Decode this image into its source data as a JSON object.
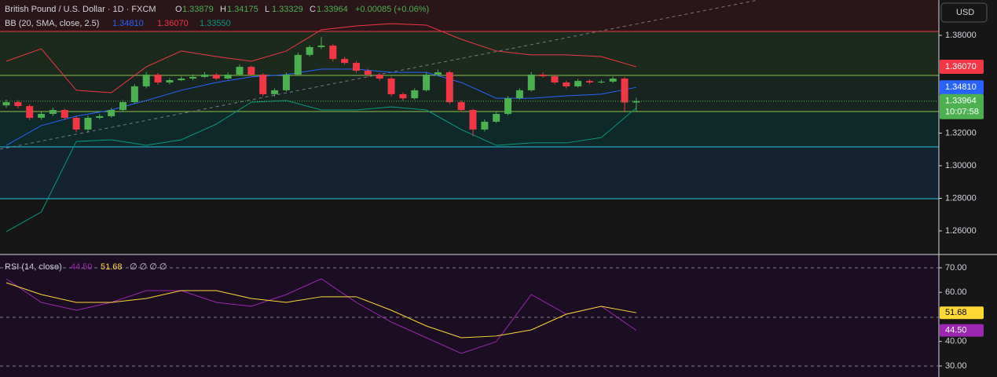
{
  "chart_data": [
    {
      "type": "candlestick",
      "title": "British Pound / U.S. Dollar · 1D · FXCM",
      "ohlc": [
        {
          "key": "O",
          "value": 1.33879
        },
        {
          "key": "H",
          "value": 1.34175
        },
        {
          "key": "L",
          "value": 1.33329
        },
        {
          "key": "C",
          "value": 1.33964
        }
      ],
      "change": "+0.00085 (+0.06%)",
      "currency": "USD",
      "countdown": "10:07:58",
      "indicator": "BB (20, SMA, close, 2.5)",
      "up_color": "#4caf50",
      "down_color": "#f23645",
      "candles": [
        [
          1.337,
          1.3405,
          1.3355,
          1.339
        ],
        [
          1.339,
          1.3402,
          1.3352,
          1.3366
        ],
        [
          1.3366,
          1.3378,
          1.328,
          1.3294
        ],
        [
          1.3294,
          1.333,
          1.3282,
          1.3318
        ],
        [
          1.3318,
          1.3356,
          1.3305,
          1.3342
        ],
        [
          1.3342,
          1.335,
          1.3282,
          1.3294
        ],
        [
          1.3294,
          1.3305,
          1.3205,
          1.3222
        ],
        [
          1.3222,
          1.3308,
          1.321,
          1.3294
        ],
        [
          1.3294,
          1.3318,
          1.3285,
          1.3304
        ],
        [
          1.3304,
          1.3355,
          1.3295,
          1.3342
        ],
        [
          1.3342,
          1.3402,
          1.333,
          1.339
        ],
        [
          1.339,
          1.35,
          1.338,
          1.3487
        ],
        [
          1.3487,
          1.3575,
          1.3475,
          1.3559
        ],
        [
          1.3559,
          1.357,
          1.3498,
          1.3511
        ],
        [
          1.3511,
          1.3538,
          1.35,
          1.3525
        ],
        [
          1.3525,
          1.3548,
          1.352,
          1.3535
        ],
        [
          1.3535,
          1.356,
          1.3525,
          1.3545
        ],
        [
          1.3545,
          1.3575,
          1.3538,
          1.3559
        ],
        [
          1.3559,
          1.357,
          1.3525,
          1.3535
        ],
        [
          1.3535,
          1.3572,
          1.3528,
          1.3559
        ],
        [
          1.3559,
          1.362,
          1.355,
          1.3607
        ],
        [
          1.3607,
          1.3615,
          1.3548,
          1.3559
        ],
        [
          1.3559,
          1.3568,
          1.3428,
          1.3439
        ],
        [
          1.3439,
          1.3475,
          1.3425,
          1.3463
        ],
        [
          1.3463,
          1.3572,
          1.3455,
          1.3559
        ],
        [
          1.3559,
          1.3695,
          1.355,
          1.368
        ],
        [
          1.368,
          1.374,
          1.367,
          1.3728
        ],
        [
          1.3728,
          1.379,
          1.3715,
          1.3737
        ],
        [
          1.3737,
          1.3748,
          1.364,
          1.3655
        ],
        [
          1.3655,
          1.3668,
          1.362,
          1.3631
        ],
        [
          1.3631,
          1.3642,
          1.357,
          1.3583
        ],
        [
          1.3583,
          1.3595,
          1.3545,
          1.3559
        ],
        [
          1.3559,
          1.357,
          1.3522,
          1.3535
        ],
        [
          1.3535,
          1.3548,
          1.3425,
          1.3439
        ],
        [
          1.3439,
          1.345,
          1.34,
          1.3414
        ],
        [
          1.3414,
          1.3475,
          1.3405,
          1.3463
        ],
        [
          1.3463,
          1.3572,
          1.3455,
          1.3559
        ],
        [
          1.3559,
          1.359,
          1.3548,
          1.3573
        ],
        [
          1.3573,
          1.3582,
          1.3378,
          1.339
        ],
        [
          1.339,
          1.34,
          1.333,
          1.3342
        ],
        [
          1.3342,
          1.335,
          1.318,
          1.3222
        ],
        [
          1.3222,
          1.3285,
          1.321,
          1.327
        ],
        [
          1.327,
          1.333,
          1.3262,
          1.3318
        ],
        [
          1.3318,
          1.3428,
          1.331,
          1.3414
        ],
        [
          1.3414,
          1.3475,
          1.3405,
          1.3463
        ],
        [
          1.3463,
          1.3575,
          1.3455,
          1.3559
        ],
        [
          1.3559,
          1.3572,
          1.354,
          1.3549
        ],
        [
          1.3549,
          1.356,
          1.35,
          1.3511
        ],
        [
          1.3511,
          1.3522,
          1.3475,
          1.3487
        ],
        [
          1.3487,
          1.3532,
          1.348,
          1.352
        ],
        [
          1.352,
          1.353,
          1.3502,
          1.3511
        ],
        [
          1.3511,
          1.3528,
          1.3505,
          1.3516
        ],
        [
          1.3516,
          1.3548,
          1.3508,
          1.3535
        ],
        [
          1.3535,
          1.3545,
          1.3335,
          1.3388
        ],
        [
          1.33879,
          1.34175,
          1.33329,
          1.33964
        ]
      ],
      "x": [
        0,
        3,
        6,
        9,
        12,
        15,
        18,
        21,
        24,
        27,
        30,
        33,
        36,
        39,
        42,
        45,
        48,
        51,
        54
      ],
      "series": [
        {
          "name": "basis",
          "color": "#2962ff",
          "last_label": "1.34810",
          "values": [
            1.3125,
            1.3246,
            1.3304,
            1.3342,
            1.34,
            1.3463,
            1.3511,
            1.3545,
            1.3559,
            1.3593,
            1.3593,
            1.3573,
            1.3573,
            1.3511,
            1.3414,
            1.3414,
            1.3429,
            1.3439,
            1.3481
          ]
        },
        {
          "name": "upper",
          "color": "#f23645",
          "last_label": "1.36070",
          "values": [
            1.3641,
            1.3718,
            1.3463,
            1.3448,
            1.3607,
            1.3704,
            1.367,
            1.3641,
            1.3704,
            1.3834,
            1.3858,
            1.3872,
            1.3863,
            1.3776,
            1.3704,
            1.368,
            1.368,
            1.367,
            1.3607
          ]
        },
        {
          "name": "lower",
          "color": "#089981",
          "last_label": "1.33550",
          "values": [
            1.2595,
            1.2716,
            1.3149,
            1.3159,
            1.3125,
            1.3159,
            1.3255,
            1.339,
            1.34,
            1.3342,
            1.3342,
            1.3361,
            1.3342,
            1.3222,
            1.3125,
            1.314,
            1.314,
            1.3173,
            1.3355
          ]
        }
      ],
      "ylim": [
        1.246,
        1.4017
      ],
      "yticks": [
        {
          "value": 1.38,
          "label": "1.38000"
        },
        {
          "value": 1.32,
          "label": "1.32000"
        },
        {
          "value": 1.3,
          "label": "1.30000"
        },
        {
          "value": 1.28,
          "label": "1.28000"
        },
        {
          "value": 1.26,
          "label": "1.26000"
        }
      ]
    },
    {
      "type": "line",
      "title": "RSI (14, close)",
      "extra": "∅ ∅ ∅ ∅",
      "x": [
        0,
        3,
        6,
        9,
        12,
        15,
        18,
        21,
        24,
        27,
        30,
        33,
        36,
        39,
        42,
        45,
        48,
        51,
        54
      ],
      "series": [
        {
          "name": "rsi",
          "color": "#9c27b0",
          "last_label": "44.50",
          "values": [
            65.5,
            55.9,
            52.7,
            55.9,
            60.7,
            60.7,
            55.9,
            54.3,
            59.1,
            65.5,
            55.9,
            47.9,
            41.5,
            35.1,
            39.9,
            59.1,
            51.1,
            54.3,
            44.5
          ]
        },
        {
          "name": "rsi-ma",
          "color": "#fdd835",
          "last_label": "51.68",
          "values": [
            63.9,
            59.1,
            55.9,
            55.9,
            57.5,
            60.7,
            60.7,
            57.5,
            55.9,
            58.2,
            58.2,
            52.7,
            46.3,
            41.5,
            42.2,
            44.7,
            51.1,
            54.3,
            51.68
          ]
        }
      ],
      "ylim": [
        25.5,
        75.1
      ],
      "yticks": [
        {
          "value": 70,
          "label": "70.00"
        },
        {
          "value": 60,
          "label": "60.00"
        },
        {
          "value": 40,
          "label": "40.00"
        },
        {
          "value": 30,
          "label": "30.00"
        }
      ]
    }
  ]
}
